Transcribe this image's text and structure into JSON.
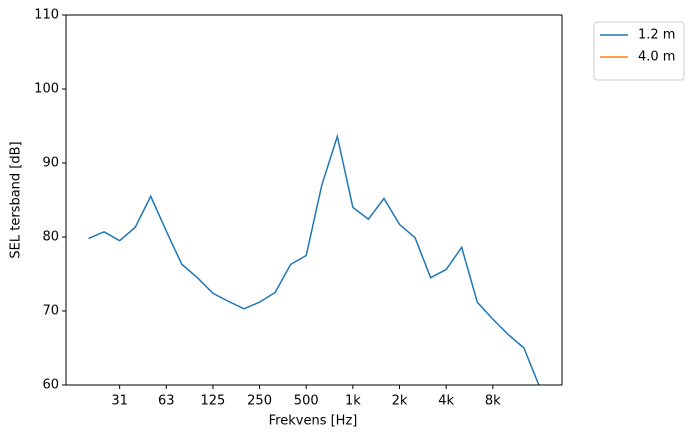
{
  "chart_data": {
    "type": "line",
    "x_label": "Frekvens [Hz]",
    "y_label": "SEL tersband [dB]",
    "x": [
      0,
      1,
      2,
      3,
      4,
      5,
      6,
      7,
      8,
      9,
      10,
      11,
      12,
      13,
      14,
      15,
      16,
      17,
      18,
      19,
      20,
      21,
      22,
      23,
      24,
      25,
      26,
      27,
      28,
      29
    ],
    "series": [
      {
        "name": "1.2 m",
        "color": "#1f77b4",
        "values": [
          79.8,
          80.7,
          79.5,
          81.3,
          85.5,
          80.8,
          76.3,
          74.5,
          72.4,
          71.3,
          70.3,
          71.2,
          72.5,
          76.3,
          77.5,
          87.0,
          93.6,
          84.0,
          82.4,
          85.2,
          81.7,
          79.9,
          74.5,
          75.6,
          78.6,
          71.2,
          68.9,
          66.8,
          65.0,
          59.8
        ]
      },
      {
        "name": "4.0 m",
        "color": "#ff7f0e",
        "values": [
          null,
          null,
          null,
          null,
          null,
          null,
          null,
          null,
          null,
          null,
          null,
          null,
          null,
          null,
          null,
          null,
          null,
          null,
          null,
          null,
          null,
          null,
          null,
          null,
          null,
          null,
          null,
          null,
          null,
          null
        ]
      }
    ],
    "xlim": [
      -1.45,
      30.45
    ],
    "xticks": [
      {
        "value": 2,
        "label": "31"
      },
      {
        "value": 5,
        "label": "63"
      },
      {
        "value": 8,
        "label": "125"
      },
      {
        "value": 11,
        "label": "250"
      },
      {
        "value": 14,
        "label": "500"
      },
      {
        "value": 17,
        "label": "1k"
      },
      {
        "value": 20,
        "label": "2k"
      },
      {
        "value": 23,
        "label": "4k"
      },
      {
        "value": 26,
        "label": "8k"
      }
    ],
    "ylim": [
      60,
      110
    ],
    "yticks": [
      60,
      70,
      80,
      90,
      100,
      110
    ],
    "legend": "outside upper right"
  }
}
